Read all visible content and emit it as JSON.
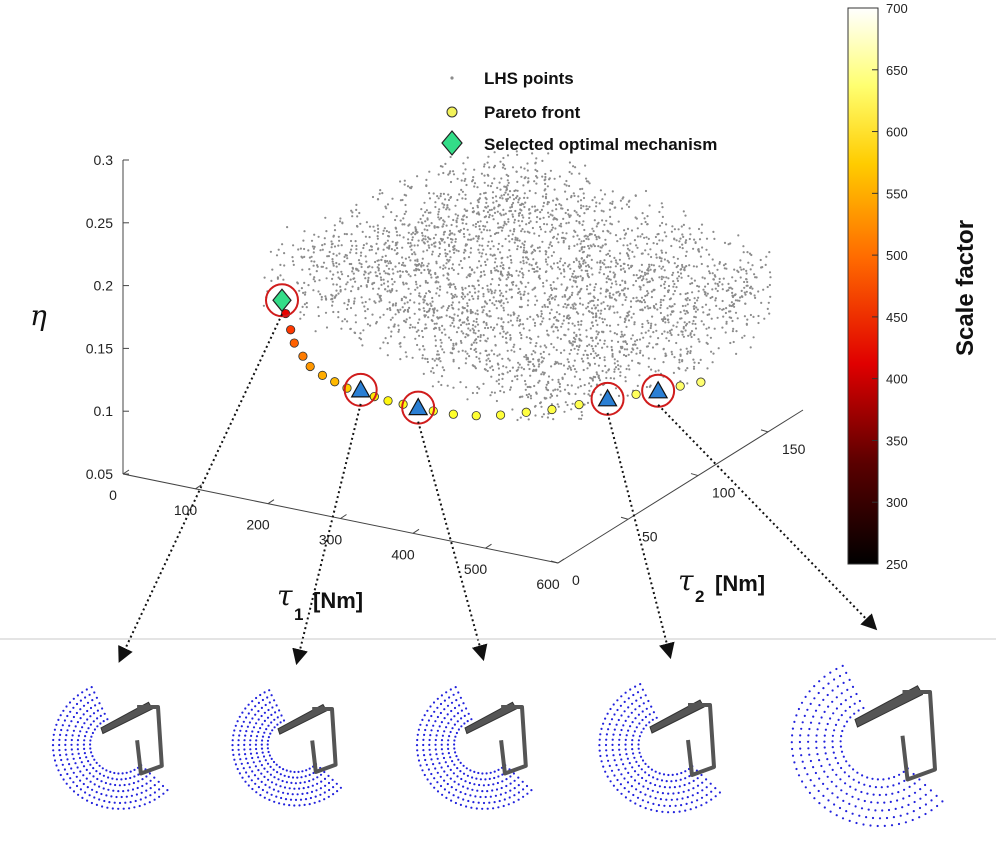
{
  "chart_data": {
    "type": "scatter",
    "dimensions": 3,
    "legend": {
      "placement": "top-center",
      "entries": [
        "LHS points",
        "Pareto front",
        "Selected optimal mechanism"
      ]
    },
    "axes": {
      "x": {
        "symbol": "τ",
        "subscript": "1",
        "unit": "[Nm]",
        "ticks": [
          "0",
          "100",
          "200",
          "300",
          "400",
          "500",
          "600"
        ],
        "range": [
          0,
          600
        ]
      },
      "y": {
        "symbol": "τ",
        "subscript": "2",
        "unit": "[Nm]",
        "ticks": [
          "0",
          "50",
          "100",
          "150"
        ],
        "range": [
          0,
          175
        ]
      },
      "z": {
        "symbol": "η",
        "ticks": [
          "0.05",
          "0.1",
          "0.15",
          "0.2",
          "0.25",
          "0.3"
        ],
        "range": [
          0.05,
          0.3
        ]
      }
    },
    "colorbar": {
      "label": "Scale factor",
      "ticks": [
        "250",
        "300",
        "350",
        "400",
        "450",
        "500",
        "550",
        "600",
        "650",
        "700"
      ],
      "range": [
        250,
        700
      ],
      "colormap": "hot"
    },
    "series": [
      {
        "name": "Pareto front",
        "points": [
          {
            "tau1": 200,
            "tau2": 10,
            "eta": 0.205,
            "scale": 300
          },
          {
            "tau1": 205,
            "tau2": 10,
            "eta": 0.195,
            "scale": 420
          },
          {
            "tau1": 210,
            "tau2": 11,
            "eta": 0.182,
            "scale": 460
          },
          {
            "tau1": 215,
            "tau2": 11,
            "eta": 0.172,
            "scale": 490
          },
          {
            "tau1": 225,
            "tau2": 12,
            "eta": 0.162,
            "scale": 510
          },
          {
            "tau1": 235,
            "tau2": 12,
            "eta": 0.155,
            "scale": 530
          },
          {
            "tau1": 250,
            "tau2": 13,
            "eta": 0.149,
            "scale": 545
          },
          {
            "tau1": 265,
            "tau2": 14,
            "eta": 0.145,
            "scale": 555
          },
          {
            "tau1": 280,
            "tau2": 15,
            "eta": 0.141,
            "scale": 570
          },
          {
            "tau1": 295,
            "tau2": 17,
            "eta": 0.138,
            "scale": 580
          },
          {
            "tau1": 310,
            "tau2": 19,
            "eta": 0.135,
            "scale": 590
          },
          {
            "tau1": 325,
            "tau2": 21,
            "eta": 0.132,
            "scale": 600
          },
          {
            "tau1": 340,
            "tau2": 24,
            "eta": 0.129,
            "scale": 605
          },
          {
            "tau1": 355,
            "tau2": 27,
            "eta": 0.126,
            "scale": 610
          },
          {
            "tau1": 370,
            "tau2": 30,
            "eta": 0.123,
            "scale": 615
          },
          {
            "tau1": 390,
            "tau2": 34,
            "eta": 0.12,
            "scale": 620
          },
          {
            "tau1": 410,
            "tau2": 40,
            "eta": 0.117,
            "scale": 625
          },
          {
            "tau1": 430,
            "tau2": 47,
            "eta": 0.115,
            "scale": 630
          },
          {
            "tau1": 450,
            "tau2": 55,
            "eta": 0.114,
            "scale": 635
          },
          {
            "tau1": 470,
            "tau2": 63,
            "eta": 0.113,
            "scale": 640
          },
          {
            "tau1": 490,
            "tau2": 72,
            "eta": 0.113,
            "scale": 645
          },
          {
            "tau1": 510,
            "tau2": 82,
            "eta": 0.112,
            "scale": 650
          },
          {
            "tau1": 530,
            "tau2": 92,
            "eta": 0.112,
            "scale": 655
          },
          {
            "tau1": 545,
            "tau2": 100,
            "eta": 0.111,
            "scale": 660
          },
          {
            "tau1": 560,
            "tau2": 108,
            "eta": 0.111,
            "scale": 665
          },
          {
            "tau1": 575,
            "tau2": 115,
            "eta": 0.111,
            "scale": 670
          }
        ]
      },
      {
        "name": "Selected optimal mechanism",
        "points": [
          {
            "tau1": 200,
            "tau2": 10,
            "eta": 0.205
          }
        ]
      }
    ],
    "highlighted_mechanisms": [
      {
        "tau1": 200,
        "tau2": 10,
        "eta": 0.205,
        "marker": "diamond"
      },
      {
        "tau1": 295,
        "tau2": 17,
        "eta": 0.14,
        "marker": "triangle"
      },
      {
        "tau1": 355,
        "tau2": 27,
        "eta": 0.126,
        "marker": "triangle"
      },
      {
        "tau1": 510,
        "tau2": 82,
        "eta": 0.113,
        "marker": "triangle"
      },
      {
        "tau1": 545,
        "tau2": 100,
        "eta": 0.111,
        "marker": "triangle"
      }
    ],
    "lhs_cloud": {
      "tau1_range": [
        190,
        600
      ],
      "tau2_range": [
        0,
        175
      ],
      "eta_range": [
        0.11,
        0.3
      ],
      "trend": "eta decreases as tau1 and tau2 increase"
    }
  },
  "colors": {
    "lhs_points": "#8c8c8c",
    "pareto_fill": "#f2f25a",
    "pareto_stroke": "#333333",
    "diamond_fill": "#33dd88",
    "triangle_fill": "#2a7fd4",
    "highlight_circle": "#d01c1c",
    "workspace_dots": "#2222dd",
    "mechanism_link": "#555555"
  },
  "mechanism_thumbnails": {
    "count": 5,
    "description_icon": "workspace-with-linkage-icon"
  }
}
